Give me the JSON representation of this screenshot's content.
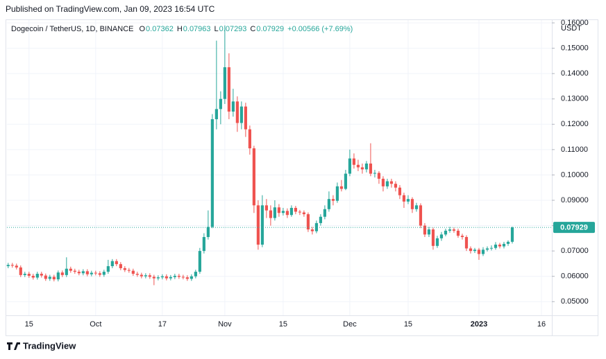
{
  "chart_data": {
    "type": "candlestick",
    "published": "Published on TradingView.com, Jan 09, 2023 16:54 UTC",
    "title": "Dogecoin / TetherUS, 1D, BINANCE",
    "legend_labels": [
      "O",
      "H",
      "L",
      "C"
    ],
    "change": "+0.00566 (+7.69%)",
    "y_axis_label": "USDT",
    "brand": "TradingView",
    "up_color": "#26a69a",
    "down_color": "#ef5350",
    "grid": true,
    "x": [
      0,
      1,
      2,
      3,
      4,
      5,
      6,
      7,
      8,
      9,
      10,
      11,
      12,
      13,
      14,
      15,
      16,
      17,
      18,
      19,
      20,
      21,
      22,
      23,
      24,
      25,
      26,
      27,
      28,
      29,
      30,
      31,
      32,
      33,
      34,
      35,
      36,
      37,
      38,
      39,
      40,
      41,
      42,
      43,
      44,
      45,
      46,
      47,
      48,
      49,
      50,
      51,
      52,
      53,
      54,
      55,
      56,
      57,
      58,
      59,
      60,
      61,
      62,
      63,
      64,
      65,
      66,
      67,
      68,
      69,
      70,
      71,
      72,
      73,
      74,
      75,
      76,
      77,
      78,
      79,
      80,
      81,
      82,
      83,
      84,
      85,
      86,
      87,
      88,
      89,
      90,
      91,
      92,
      93,
      94,
      95,
      96,
      97,
      98,
      99,
      100,
      101,
      102,
      103,
      104,
      105,
      106,
      107,
      108,
      109,
      110,
      111,
      112,
      113,
      114,
      115,
      116,
      117,
      118,
      119,
      120,
      121
    ],
    "open": [
      0.064,
      0.0645,
      0.0642,
      0.0635,
      0.0605,
      0.061,
      0.0602,
      0.0595,
      0.061,
      0.0603,
      0.059,
      0.0598,
      0.0588,
      0.0615,
      0.0605,
      0.063,
      0.0622,
      0.0618,
      0.0612,
      0.062,
      0.0608,
      0.0614,
      0.0612,
      0.0606,
      0.0618,
      0.064,
      0.066,
      0.0648,
      0.0632,
      0.0625,
      0.0622,
      0.061,
      0.0606,
      0.06,
      0.0604,
      0.0598,
      0.0592,
      0.0596,
      0.06,
      0.0592,
      0.0597,
      0.0602,
      0.0598,
      0.0596,
      0.059,
      0.06,
      0.0618,
      0.07,
      0.0755,
      0.0795,
      0.122,
      0.126,
      0.13,
      0.1425,
      0.125,
      0.129,
      0.1205,
      0.127,
      0.118,
      0.1105,
      0.088,
      0.0725,
      0.088,
      0.086,
      0.083,
      0.0872,
      0.085,
      0.0858,
      0.0842,
      0.087,
      0.0855,
      0.0852,
      0.0845,
      0.0785,
      0.0778,
      0.081,
      0.0835,
      0.0865,
      0.0905,
      0.0898,
      0.0955,
      0.0945,
      0.1005,
      0.1065,
      0.104,
      0.103,
      0.1022,
      0.1045,
      0.1005,
      0.1008,
      0.0985,
      0.0955,
      0.0975,
      0.0965,
      0.095,
      0.092,
      0.0895,
      0.0905,
      0.0865,
      0.088,
      0.08,
      0.0765,
      0.0785,
      0.072,
      0.075,
      0.0765,
      0.078,
      0.0785,
      0.078,
      0.076,
      0.0755,
      0.071,
      0.07,
      0.0705,
      0.0688,
      0.0705,
      0.071,
      0.0712,
      0.0725,
      0.0718,
      0.0728,
      0.07362
    ],
    "high": [
      0.0653,
      0.0653,
      0.065,
      0.0643,
      0.0618,
      0.0618,
      0.061,
      0.0618,
      0.0618,
      0.0611,
      0.0606,
      0.0606,
      0.0623,
      0.0623,
      0.0675,
      0.0638,
      0.063,
      0.0626,
      0.0628,
      0.0628,
      0.0622,
      0.0622,
      0.062,
      0.0626,
      0.0665,
      0.0668,
      0.0668,
      0.0656,
      0.064,
      0.0633,
      0.063,
      0.0618,
      0.0614,
      0.0612,
      0.0612,
      0.0606,
      0.0604,
      0.0608,
      0.0608,
      0.0605,
      0.061,
      0.061,
      0.0606,
      0.0604,
      0.0608,
      0.0626,
      0.0712,
      0.077,
      0.086,
      0.124,
      0.153,
      0.133,
      0.159,
      0.148,
      0.134,
      0.131,
      0.129,
      0.1285,
      0.1195,
      0.1115,
      0.09,
      0.092,
      0.0905,
      0.088,
      0.09,
      0.0885,
      0.087,
      0.0868,
      0.088,
      0.0878,
      0.0862,
      0.086,
      0.0852,
      0.0795,
      0.082,
      0.0845,
      0.088,
      0.0935,
      0.092,
      0.097,
      0.098,
      0.102,
      0.11,
      0.1085,
      0.106,
      0.1045,
      0.1055,
      0.1125,
      0.102,
      0.1015,
      0.0995,
      0.0985,
      0.0985,
      0.0975,
      0.096,
      0.093,
      0.092,
      0.0912,
      0.089,
      0.0888,
      0.081,
      0.0795,
      0.0792,
      0.076,
      0.0775,
      0.0788,
      0.0795,
      0.0792,
      0.0788,
      0.0768,
      0.0762,
      0.0718,
      0.0712,
      0.0712,
      0.0715,
      0.0718,
      0.0722,
      0.0735,
      0.0732,
      0.0736,
      0.0742,
      0.07963
    ],
    "low": [
      0.0632,
      0.0634,
      0.0627,
      0.0597,
      0.0597,
      0.0594,
      0.0587,
      0.0587,
      0.0595,
      0.0582,
      0.0582,
      0.058,
      0.058,
      0.0597,
      0.0597,
      0.0614,
      0.061,
      0.0604,
      0.0604,
      0.06,
      0.06,
      0.0604,
      0.0598,
      0.0598,
      0.061,
      0.0632,
      0.064,
      0.0624,
      0.0617,
      0.0614,
      0.0602,
      0.0598,
      0.0592,
      0.0592,
      0.059,
      0.0565,
      0.0584,
      0.0588,
      0.0584,
      0.0584,
      0.0589,
      0.059,
      0.0588,
      0.0582,
      0.0582,
      0.0592,
      0.061,
      0.069,
      0.0745,
      0.079,
      0.118,
      0.12,
      0.128,
      0.122,
      0.123,
      0.117,
      0.118,
      0.115,
      0.108,
      0.085,
      0.0705,
      0.0715,
      0.083,
      0.08,
      0.082,
      0.0835,
      0.084,
      0.083,
      0.0835,
      0.0845,
      0.0842,
      0.0835,
      0.0775,
      0.0765,
      0.077,
      0.08,
      0.0825,
      0.0855,
      0.088,
      0.089,
      0.0935,
      0.094,
      0.0995,
      0.1025,
      0.1015,
      0.1005,
      0.101,
      0.0995,
      0.099,
      0.0965,
      0.0935,
      0.0945,
      0.095,
      0.0935,
      0.0905,
      0.087,
      0.0885,
      0.085,
      0.0855,
      0.079,
      0.0755,
      0.0755,
      0.0705,
      0.0712,
      0.074,
      0.0758,
      0.0772,
      0.0772,
      0.0752,
      0.0745,
      0.07,
      0.069,
      0.0692,
      0.0665,
      0.068,
      0.0698,
      0.0702,
      0.0705,
      0.071,
      0.071,
      0.072,
      0.07293
    ],
    "close": [
      0.0645,
      0.0642,
      0.0635,
      0.0605,
      0.061,
      0.0602,
      0.0595,
      0.061,
      0.0603,
      0.059,
      0.0598,
      0.0588,
      0.0615,
      0.0605,
      0.063,
      0.0622,
      0.0618,
      0.0612,
      0.062,
      0.0608,
      0.0614,
      0.0612,
      0.0606,
      0.0618,
      0.064,
      0.066,
      0.0648,
      0.0632,
      0.0625,
      0.0622,
      0.061,
      0.0606,
      0.06,
      0.0604,
      0.0598,
      0.0592,
      0.0596,
      0.06,
      0.0592,
      0.0597,
      0.0602,
      0.0598,
      0.0596,
      0.059,
      0.06,
      0.0618,
      0.07,
      0.0755,
      0.0795,
      0.122,
      0.126,
      0.13,
      0.1425,
      0.125,
      0.129,
      0.1205,
      0.127,
      0.118,
      0.1105,
      0.088,
      0.0725,
      0.088,
      0.086,
      0.083,
      0.0872,
      0.085,
      0.0858,
      0.0842,
      0.087,
      0.0855,
      0.0852,
      0.0845,
      0.0785,
      0.0778,
      0.081,
      0.0835,
      0.0865,
      0.0905,
      0.0898,
      0.0955,
      0.0945,
      0.1005,
      0.1065,
      0.104,
      0.103,
      0.1022,
      0.1045,
      0.1005,
      0.1008,
      0.0985,
      0.0955,
      0.0975,
      0.0965,
      0.095,
      0.092,
      0.0895,
      0.0905,
      0.0865,
      0.088,
      0.08,
      0.0765,
      0.0785,
      0.072,
      0.075,
      0.0765,
      0.078,
      0.0785,
      0.078,
      0.076,
      0.0755,
      0.071,
      0.07,
      0.0705,
      0.0688,
      0.0705,
      0.071,
      0.0712,
      0.0725,
      0.0718,
      0.0728,
      0.07362,
      0.07929
    ],
    "xlim": [
      -0.3,
      130.5
    ],
    "xticks": [
      {
        "value": 5,
        "label": "15"
      },
      {
        "value": 21,
        "label": "Oct"
      },
      {
        "value": 37,
        "label": "17"
      },
      {
        "value": 52,
        "label": "Nov"
      },
      {
        "value": 66,
        "label": "15"
      },
      {
        "value": 82,
        "label": "Dec"
      },
      {
        "value": 96,
        "label": "15"
      },
      {
        "value": 113,
        "label": "2023"
      },
      {
        "value": 128,
        "label": "16"
      }
    ],
    "ylim": [
      0.0446,
      0.1611
    ],
    "yticks": [
      {
        "value": 0.05,
        "label": "0.05000"
      },
      {
        "value": 0.06,
        "label": "0.06000"
      },
      {
        "value": 0.07,
        "label": "0.07000"
      },
      {
        "value": 0.08,
        "label": "0.08000"
      },
      {
        "value": 0.09,
        "label": "0.09000"
      },
      {
        "value": 0.1,
        "label": "0.10000"
      },
      {
        "value": 0.11,
        "label": "0.11000"
      },
      {
        "value": 0.12,
        "label": "0.12000"
      },
      {
        "value": 0.13,
        "label": "0.13000"
      },
      {
        "value": 0.14,
        "label": "0.14000"
      },
      {
        "value": 0.15,
        "label": "0.15000"
      },
      {
        "value": 0.16,
        "label": "0.16000"
      }
    ]
  }
}
